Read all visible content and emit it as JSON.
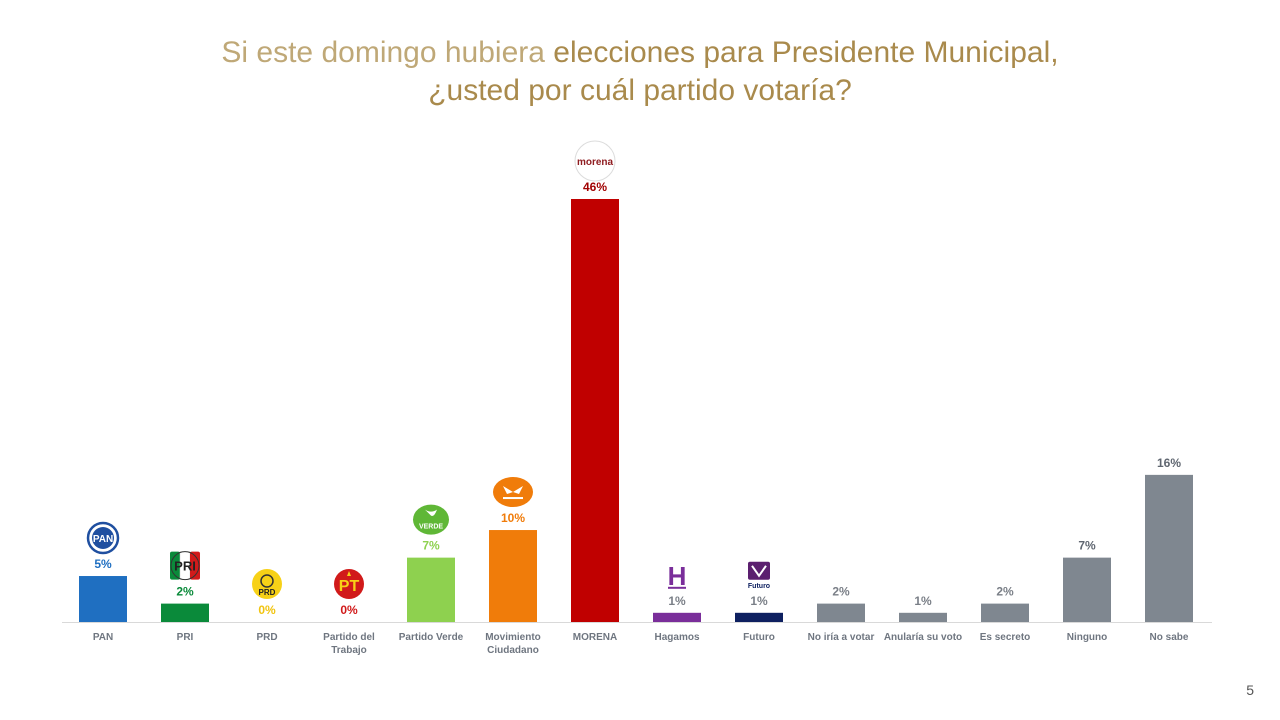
{
  "title": {
    "line1_light": "Si este domingo hubiera ",
    "line1_bold": "elecciones para Presidente Municipal,",
    "line2": "¿usted por cuál partido votaría?"
  },
  "page_number": "5",
  "chart_data": {
    "type": "bar",
    "ylim": [
      0,
      50
    ],
    "grid": false,
    "legend": "none",
    "categories": [
      {
        "label": [
          "PAN"
        ],
        "value": 5,
        "display": "5%",
        "color": "#1f6fc1",
        "label_color": "#1f6fc1",
        "logo": "pan-logo",
        "logo_text": "PAN"
      },
      {
        "label": [
          "PRI"
        ],
        "value": 2,
        "display": "2%",
        "color": "#0a8a3a",
        "label_color": "#0a8a3a",
        "logo": "pri-logo",
        "logo_text": "PRI"
      },
      {
        "label": [
          "PRD"
        ],
        "value": 0,
        "display": "0%",
        "color": "#f1c40f",
        "label_color": "#f1c40f",
        "logo": "prd-logo",
        "logo_text": "PRD"
      },
      {
        "label": [
          "Partido del",
          "Trabajo"
        ],
        "value": 0,
        "display": "0%",
        "color": "#d11a1a",
        "label_color": "#d11a1a",
        "logo": "pt-logo",
        "logo_text": "PT"
      },
      {
        "label": [
          "Partido Verde"
        ],
        "value": 7,
        "display": "7%",
        "color": "#8ed14f",
        "label_color": "#8ed14f",
        "logo": "verde-logo",
        "logo_text": "VERDE"
      },
      {
        "label": [
          "Movimiento",
          "Ciudadano"
        ],
        "value": 10,
        "display": "10%",
        "color": "#f07c0a",
        "label_color": "#f07c0a",
        "logo": "mc-logo",
        "logo_text": ""
      },
      {
        "label": [
          "MORENA"
        ],
        "value": 46,
        "display": "46%",
        "color": "#c00000",
        "label_color": "#a00000",
        "logo": "morena-logo",
        "logo_text": "morena"
      },
      {
        "label": [
          "Hagamos"
        ],
        "value": 1,
        "display": "1%",
        "color": "#7a2e9a",
        "label_color": "#7a7f87",
        "logo": "hagamos-logo",
        "logo_text": "H"
      },
      {
        "label": [
          "Futuro"
        ],
        "value": 1,
        "display": "1%",
        "color": "#0e2060",
        "label_color": "#7a7f87",
        "logo": "futuro-logo",
        "logo_text": "Futuro"
      },
      {
        "label": [
          "No iría a votar"
        ],
        "value": 2,
        "display": "2%",
        "color": "#7f8790",
        "label_color": "#7a7f87",
        "logo": "",
        "logo_text": ""
      },
      {
        "label": [
          "Anularía su voto"
        ],
        "value": 1,
        "display": "1%",
        "color": "#7f8790",
        "label_color": "#7a7f87",
        "logo": "",
        "logo_text": ""
      },
      {
        "label": [
          "Es secreto"
        ],
        "value": 2,
        "display": "2%",
        "color": "#7f8790",
        "label_color": "#7a7f87",
        "logo": "",
        "logo_text": ""
      },
      {
        "label": [
          "Ninguno"
        ],
        "value": 7,
        "display": "7%",
        "color": "#7f8790",
        "label_color": "#5f6670",
        "logo": "",
        "logo_text": ""
      },
      {
        "label": [
          "No sabe"
        ],
        "value": 16,
        "display": "16%",
        "color": "#7f8790",
        "label_color": "#5f6670",
        "logo": "",
        "logo_text": ""
      }
    ]
  }
}
